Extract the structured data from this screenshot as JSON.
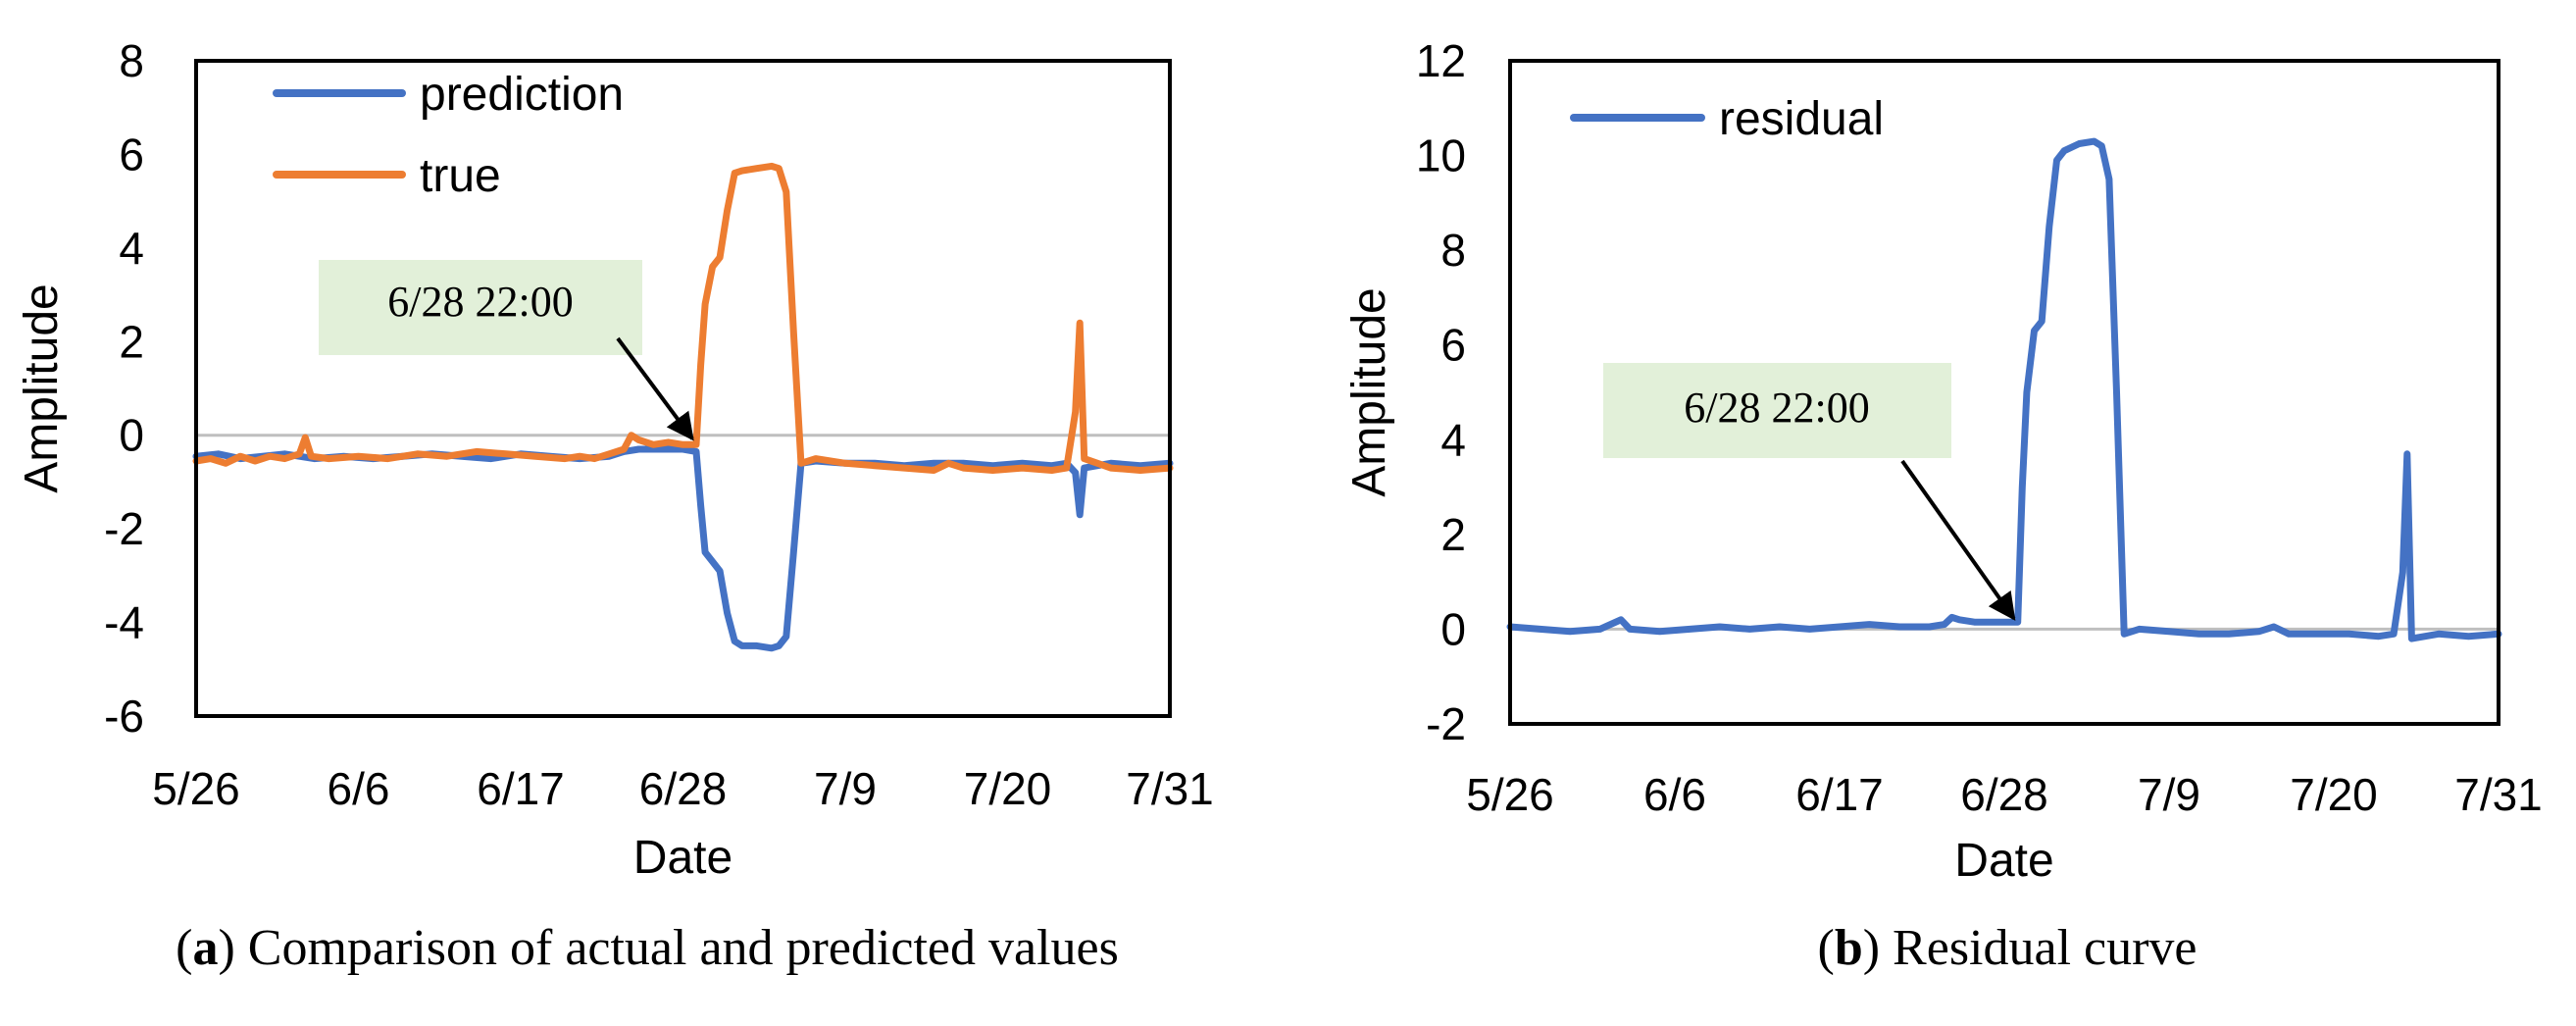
{
  "colors": {
    "prediction": "#4472C4",
    "true": "#ED7D31",
    "residual": "#4472C4",
    "zero_line": "#BFBFBF",
    "annotation_box": "#E2F0D9"
  },
  "chart_data": [
    {
      "type": "line",
      "xlabel": "Date",
      "ylabel": "Amplitude",
      "x_tick_labels": [
        "5/26",
        "6/6",
        "6/17",
        "6/28",
        "7/9",
        "7/20",
        "7/31"
      ],
      "x_range_days": [
        0,
        66
      ],
      "y_ticks": [
        8,
        6,
        4,
        2,
        0,
        -2,
        -4,
        -6
      ],
      "ylim": [
        -6,
        8
      ],
      "legend": [
        "prediction",
        "true"
      ],
      "annotation": {
        "text": "6/28 22:00",
        "x_day": 33.9,
        "y": -0.2
      },
      "caption": {
        "label": "a",
        "text": "Comparison of actual and predicted values"
      },
      "series": [
        {
          "name": "prediction",
          "points": [
            [
              0,
              -0.45
            ],
            [
              1.5,
              -0.4
            ],
            [
              3,
              -0.5
            ],
            [
              4.5,
              -0.45
            ],
            [
              6,
              -0.4
            ],
            [
              7,
              -0.45
            ],
            [
              8,
              -0.5
            ],
            [
              10,
              -0.45
            ],
            [
              12,
              -0.5
            ],
            [
              14,
              -0.45
            ],
            [
              16,
              -0.4
            ],
            [
              18,
              -0.45
            ],
            [
              20,
              -0.5
            ],
            [
              22,
              -0.4
            ],
            [
              24,
              -0.45
            ],
            [
              26,
              -0.5
            ],
            [
              28,
              -0.45
            ],
            [
              29,
              -0.35
            ],
            [
              30,
              -0.3
            ],
            [
              31,
              -0.3
            ],
            [
              32,
              -0.3
            ],
            [
              33,
              -0.3
            ],
            [
              33.9,
              -0.35
            ],
            [
              34.2,
              -1.5
            ],
            [
              34.5,
              -2.5
            ],
            [
              35,
              -2.7
            ],
            [
              35.5,
              -2.9
            ],
            [
              36,
              -3.8
            ],
            [
              36.5,
              -4.4
            ],
            [
              37,
              -4.5
            ],
            [
              38,
              -4.5
            ],
            [
              39,
              -4.55
            ],
            [
              39.5,
              -4.5
            ],
            [
              40,
              -4.3
            ],
            [
              40.5,
              -2.5
            ],
            [
              41,
              -0.6
            ],
            [
              42,
              -0.55
            ],
            [
              44,
              -0.6
            ],
            [
              46,
              -0.6
            ],
            [
              48,
              -0.65
            ],
            [
              50,
              -0.6
            ],
            [
              52,
              -0.6
            ],
            [
              54,
              -0.65
            ],
            [
              56,
              -0.6
            ],
            [
              58,
              -0.65
            ],
            [
              59,
              -0.6
            ],
            [
              59.6,
              -0.8
            ],
            [
              59.9,
              -1.7
            ],
            [
              60.2,
              -0.7
            ],
            [
              62,
              -0.6
            ],
            [
              64,
              -0.65
            ],
            [
              66,
              -0.6
            ]
          ]
        },
        {
          "name": "true",
          "points": [
            [
              0,
              -0.55
            ],
            [
              1,
              -0.5
            ],
            [
              2,
              -0.6
            ],
            [
              3,
              -0.45
            ],
            [
              4,
              -0.55
            ],
            [
              5,
              -0.45
            ],
            [
              6,
              -0.5
            ],
            [
              7,
              -0.4
            ],
            [
              7.4,
              -0.05
            ],
            [
              7.8,
              -0.45
            ],
            [
              9,
              -0.5
            ],
            [
              11,
              -0.45
            ],
            [
              13,
              -0.5
            ],
            [
              15,
              -0.4
            ],
            [
              17,
              -0.45
            ],
            [
              19,
              -0.35
            ],
            [
              21,
              -0.4
            ],
            [
              23,
              -0.45
            ],
            [
              25,
              -0.5
            ],
            [
              26,
              -0.45
            ],
            [
              27,
              -0.5
            ],
            [
              28,
              -0.4
            ],
            [
              29,
              -0.3
            ],
            [
              29.5,
              0
            ],
            [
              30,
              -0.1
            ],
            [
              31,
              -0.2
            ],
            [
              32,
              -0.15
            ],
            [
              33,
              -0.2
            ],
            [
              33.9,
              -0.2
            ],
            [
              34.2,
              1.5
            ],
            [
              34.5,
              2.8
            ],
            [
              35,
              3.6
            ],
            [
              35.5,
              3.8
            ],
            [
              36,
              4.8
            ],
            [
              36.5,
              5.6
            ],
            [
              37,
              5.65
            ],
            [
              38,
              5.7
            ],
            [
              39,
              5.75
            ],
            [
              39.5,
              5.7
            ],
            [
              40,
              5.2
            ],
            [
              40.5,
              2.2
            ],
            [
              41,
              -0.6
            ],
            [
              42,
              -0.5
            ],
            [
              44,
              -0.6
            ],
            [
              46,
              -0.65
            ],
            [
              48,
              -0.7
            ],
            [
              50,
              -0.75
            ],
            [
              51,
              -0.6
            ],
            [
              52,
              -0.7
            ],
            [
              54,
              -0.75
            ],
            [
              56,
              -0.7
            ],
            [
              58,
              -0.75
            ],
            [
              59,
              -0.7
            ],
            [
              59.6,
              0.5
            ],
            [
              59.9,
              2.4
            ],
            [
              60.2,
              -0.5
            ],
            [
              62,
              -0.7
            ],
            [
              64,
              -0.75
            ],
            [
              66,
              -0.7
            ]
          ]
        }
      ]
    },
    {
      "type": "line",
      "xlabel": "Date",
      "ylabel": "Amplitude",
      "x_tick_labels": [
        "5/26",
        "6/6",
        "6/17",
        "6/28",
        "7/9",
        "7/20",
        "7/31"
      ],
      "x_range_days": [
        0,
        66
      ],
      "y_ticks": [
        12,
        10,
        8,
        6,
        4,
        2,
        0,
        -2
      ],
      "ylim": [
        -2,
        12
      ],
      "legend": [
        "residual"
      ],
      "annotation": {
        "text": "6/28 22:00",
        "x_day": 33.9,
        "y": 0.1
      },
      "caption": {
        "label": "b",
        "text": "Residual curve"
      },
      "series": [
        {
          "name": "residual",
          "points": [
            [
              0,
              0.05
            ],
            [
              2,
              0
            ],
            [
              4,
              -0.05
            ],
            [
              6,
              0
            ],
            [
              7.4,
              0.2
            ],
            [
              8,
              0
            ],
            [
              10,
              -0.05
            ],
            [
              12,
              0
            ],
            [
              14,
              0.05
            ],
            [
              16,
              0
            ],
            [
              18,
              0.05
            ],
            [
              20,
              0
            ],
            [
              22,
              0.05
            ],
            [
              24,
              0.1
            ],
            [
              26,
              0.05
            ],
            [
              28,
              0.05
            ],
            [
              29,
              0.1
            ],
            [
              29.5,
              0.25
            ],
            [
              30,
              0.2
            ],
            [
              31,
              0.15
            ],
            [
              32,
              0.15
            ],
            [
              33,
              0.15
            ],
            [
              33.9,
              0.15
            ],
            [
              34.2,
              3
            ],
            [
              34.5,
              5
            ],
            [
              35,
              6.3
            ],
            [
              35.5,
              6.5
            ],
            [
              36,
              8.5
            ],
            [
              36.5,
              9.9
            ],
            [
              37,
              10.1
            ],
            [
              38,
              10.25
            ],
            [
              39,
              10.3
            ],
            [
              39.5,
              10.2
            ],
            [
              40,
              9.5
            ],
            [
              40.5,
              5
            ],
            [
              41,
              -0.1
            ],
            [
              42,
              0
            ],
            [
              44,
              -0.05
            ],
            [
              46,
              -0.1
            ],
            [
              48,
              -0.1
            ],
            [
              50,
              -0.05
            ],
            [
              51,
              0.05
            ],
            [
              52,
              -0.1
            ],
            [
              54,
              -0.1
            ],
            [
              56,
              -0.1
            ],
            [
              58,
              -0.15
            ],
            [
              59,
              -0.1
            ],
            [
              59.6,
              1.2
            ],
            [
              59.9,
              3.7
            ],
            [
              60.2,
              -0.2
            ],
            [
              62,
              -0.1
            ],
            [
              64,
              -0.15
            ],
            [
              66,
              -0.1
            ]
          ]
        }
      ]
    }
  ]
}
